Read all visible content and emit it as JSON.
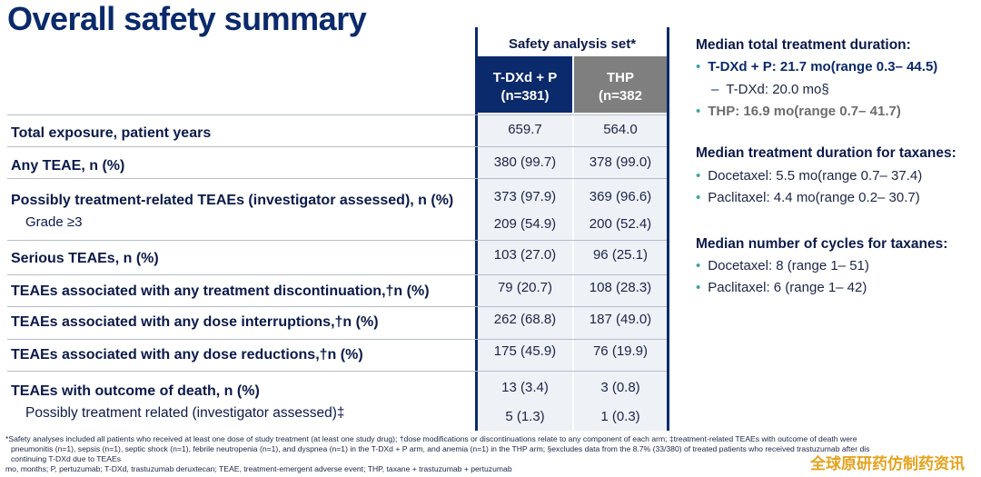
{
  "title": "Overall safety summary",
  "table": {
    "set_header": "Safety analysis set*",
    "col_a": {
      "line1": "T-DXd + P",
      "line2": "(n=381)"
    },
    "col_b": {
      "line1": "THP",
      "line2": "(n=382"
    },
    "rows": [
      {
        "label": "Total exposure, patient years",
        "a": "659.7",
        "b": "564.0"
      },
      {
        "label": "Any TEAE, n (%)",
        "a": "380 (99.7)",
        "b": "378 (99.0)"
      },
      {
        "label": "Possibly treatment-related TEAEs (investigator assessed), n (%)",
        "a": "373 (97.9)",
        "b": "369 (96.6)"
      },
      {
        "label": "Grade ≥3",
        "a": "209 (54.9)",
        "b": "200 (52.4)"
      },
      {
        "label": "Serious TEAEs, n (%)",
        "a": "103 (27.0)",
        "b": "96 (25.1)"
      },
      {
        "label": "TEAEs associated with any treatment discontinuation,†n (%)",
        "a": "79 (20.7)",
        "b": "108 (28.3)"
      },
      {
        "label": "TEAEs associated with any dose interruptions,†n (%)",
        "a": "262 (68.8)",
        "b": "187 (49.0)"
      },
      {
        "label": "TEAEs associated with any dose reductions,†n (%)",
        "a": "175 (45.9)",
        "b": "76 (19.9)"
      },
      {
        "label": "TEAEs with outcome of death, n (%)",
        "a": "13 (3.4)",
        "b": "3 (0.8)"
      },
      {
        "label": "Possibly treatment related (investigator assessed)‡",
        "a": "5 (1.3)",
        "b": "1 (0.3)"
      }
    ]
  },
  "panel": {
    "dur_head": "Median total treatment duration:",
    "dur_a": "T-DXd + P: 21.7 mo(range 0.3– 44.5)",
    "dur_a_sub": "T-DXd: 20.0 mo§",
    "dur_b": "THP: 16.9 mo(range 0.7– 41.7)",
    "tax_head": "Median treatment duration for taxanes:",
    "tax_1": "Docetaxel: 5.5 mo(range 0.7– 37.4)",
    "tax_2": "Paclitaxel: 4.4 mo(range 0.2– 30.7)",
    "cyc_head": "Median number of cycles for taxanes:",
    "cyc_1": "Docetaxel: 8 (range 1– 51)",
    "cyc_2": "Paclitaxel: 6 (range 1– 42)"
  },
  "footnotes": {
    "line1": "*Safety analyses included all patients who received at least one dose of study treatment (at least one study drug); †dose modifications or discontinuations relate to any component of each arm; ‡treatment-related TEAEs with outcome of death were",
    "line2": "pneumonitis (n=1), sepsis (n=1), septic shock (n=1), febrile neutropenia (n=1), and dyspnea (n=1) in the T-DXd + P arm, and anemia (n=1) in the THP arm; §excludes data from the 8.7% (33/380) of treated patients who received trastuzumab after dis",
    "line3": "continuing T-DXd due to TEAEs",
    "line4": "mo, months; P, pertuzumab; T-DXd, trastuzumab deruxtecan; TEAE, treatment-emergent adverse event; THP, taxane + trastuzumab + pertuzumab"
  },
  "watermark": "全球原研药仿制药资讯",
  "colors": {
    "navy": "#0b2a6b",
    "gray_header": "#7f7f7f",
    "cell_bg": "#eef1f6",
    "bullet": "#3aa6a0",
    "watermark": "#e5a21d"
  }
}
